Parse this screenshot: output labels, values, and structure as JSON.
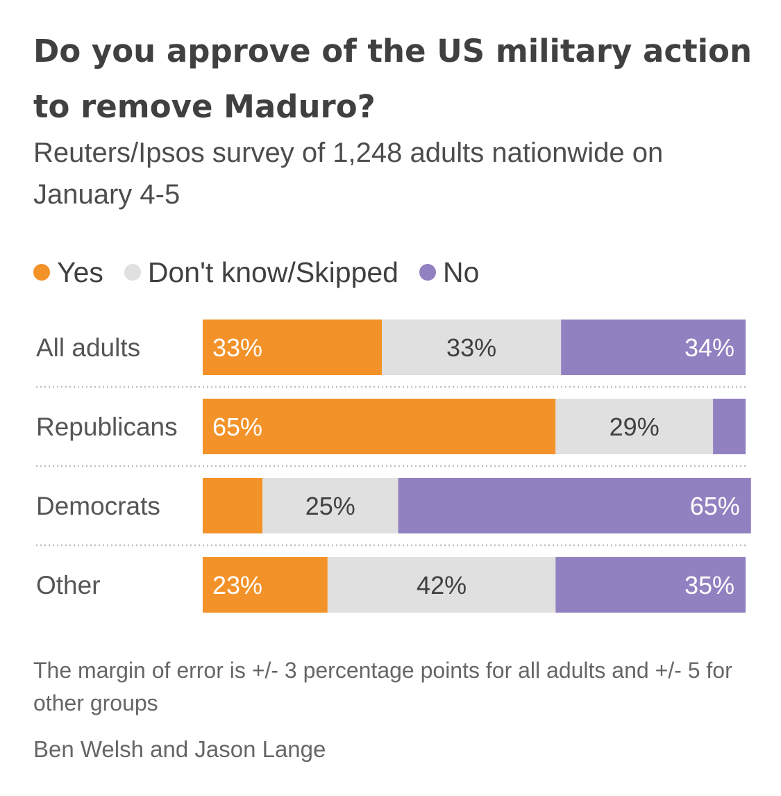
{
  "chart_data": {
    "type": "bar",
    "orientation": "horizontal",
    "stacked": true,
    "title": "Do you approve of the US military action to remove Maduro?",
    "subtitle": "Reuters/Ipsos survey of 1,248 adults nationwide on January 4-5",
    "categories": [
      "All adults",
      "Republicans",
      "Democrats",
      "Other"
    ],
    "series": [
      {
        "name": "Yes",
        "color": "#f39229",
        "label_color": "#ffffff",
        "values": [
          33,
          65,
          11,
          23
        ],
        "labels": [
          "33%",
          "65%",
          "",
          "23%"
        ]
      },
      {
        "name": "Don't know/Skipped",
        "color": "#e0e0e0",
        "label_color": "#404040",
        "values": [
          33,
          29,
          25,
          42
        ],
        "labels": [
          "33%",
          "29%",
          "25%",
          "42%"
        ]
      },
      {
        "name": "No",
        "color": "#9281c0",
        "label_color": "#ffffff",
        "values": [
          34,
          6,
          65,
          35
        ],
        "labels": [
          "34%",
          "",
          "65%",
          "35%"
        ]
      }
    ],
    "xlim": [
      0,
      100
    ],
    "legend_position": "top-left",
    "note": "The margin of error is +/- 3 percentage points for all adults and +/- 5 for other groups",
    "credit": "Ben Welsh and Jason Lange"
  }
}
